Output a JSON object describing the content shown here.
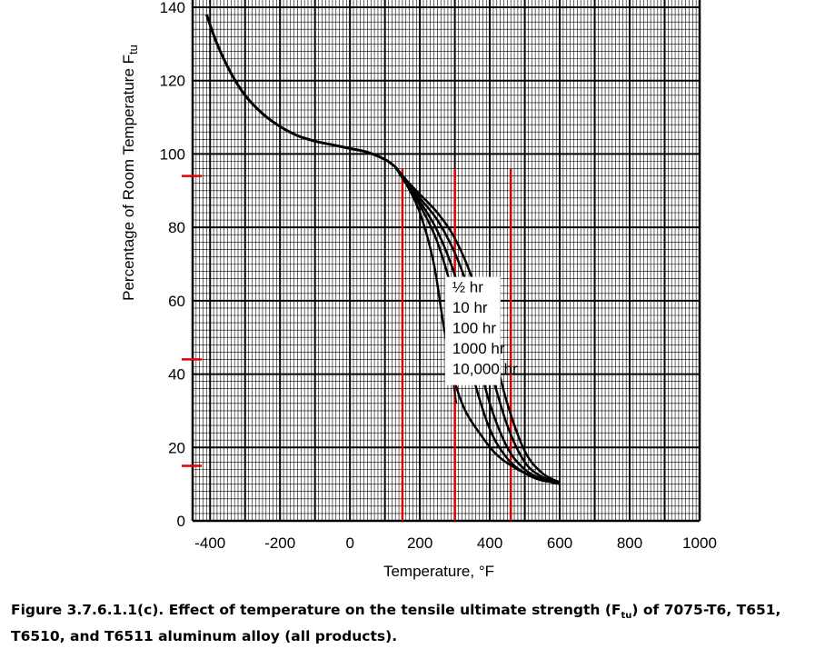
{
  "chart_data": {
    "type": "line",
    "xlabel": "Temperature, °F",
    "ylabel_main": "Percentage of Room Temperature F",
    "ylabel_sub": "tu",
    "xlim": [
      -450,
      1000
    ],
    "ylim": [
      0,
      140
    ],
    "x_ticks": [
      -400,
      -200,
      0,
      200,
      400,
      600,
      800,
      1000
    ],
    "x_tick_labels": [
      "-400",
      "-200",
      "0",
      "200",
      "400",
      "600",
      "800",
      "1000"
    ],
    "y_ticks": [
      0,
      20,
      40,
      60,
      80,
      100,
      120,
      140
    ],
    "y_tick_labels": [
      "0",
      "20",
      "40",
      "60",
      "80",
      "100",
      "120",
      "140"
    ],
    "grid": true,
    "legend_placement": "right",
    "common_curve": {
      "x": [
        -410,
        -380,
        -340,
        -300,
        -250,
        -200,
        -150,
        -100,
        -50,
        0,
        50,
        100,
        130
      ],
      "y": [
        138,
        130,
        122,
        116,
        111,
        107.5,
        105,
        103.5,
        102.5,
        101.5,
        100.5,
        98.5,
        96.5
      ]
    },
    "series": [
      {
        "name": "½ hr",
        "x": [
          130,
          160,
          200,
          250,
          300,
          350,
          400,
          450,
          500,
          550,
          600
        ],
        "y": [
          96.5,
          93,
          89,
          84,
          77,
          66,
          50,
          32,
          19,
          13,
          10.5
        ]
      },
      {
        "name": "10 hr",
        "x": [
          130,
          160,
          200,
          250,
          300,
          350,
          400,
          450,
          500,
          550,
          600
        ],
        "y": [
          96.5,
          93,
          88,
          82,
          73,
          60,
          42,
          26,
          16,
          12,
          10.5
        ]
      },
      {
        "name": "100 hr",
        "x": [
          130,
          160,
          200,
          250,
          300,
          350,
          400,
          450,
          500,
          550,
          600
        ],
        "y": [
          96.5,
          92,
          87,
          79,
          67,
          50,
          32,
          20,
          14,
          11.5,
          10.5
        ]
      },
      {
        "name": "1000 hr",
        "x": [
          130,
          160,
          200,
          250,
          300,
          350,
          400,
          450,
          500,
          550,
          600
        ],
        "y": [
          96.5,
          92,
          86,
          76,
          60,
          40,
          25,
          17,
          13,
          11,
          10.5
        ]
      },
      {
        "name": "10,000 hr",
        "x": [
          130,
          160,
          200,
          240,
          270,
          300,
          330,
          370,
          420,
          480,
          540,
          600
        ],
        "y": [
          96.5,
          92,
          84,
          70,
          52,
          38,
          30,
          24,
          18,
          14,
          11.5,
          10
        ]
      }
    ],
    "legend": [
      "½ hr",
      "10 hr",
      "100 hr",
      "1000 hr",
      "10,000 hr"
    ],
    "red_marks": {
      "vertical_x": [
        150,
        300,
        460
      ],
      "horizontal_y": [
        94,
        44,
        15
      ]
    },
    "colors": {
      "curve": "#000000",
      "grid": "#000000",
      "marker": "#e00000"
    }
  },
  "caption": {
    "prefix": "Figure 3.7.6.1.1(c).  Effect of temperature on the tensile ultimate strength (F",
    "sub": "tu",
    "suffix": ") of 7075-T6, T651, T6510, and T6511 aluminum alloy (all products)."
  }
}
